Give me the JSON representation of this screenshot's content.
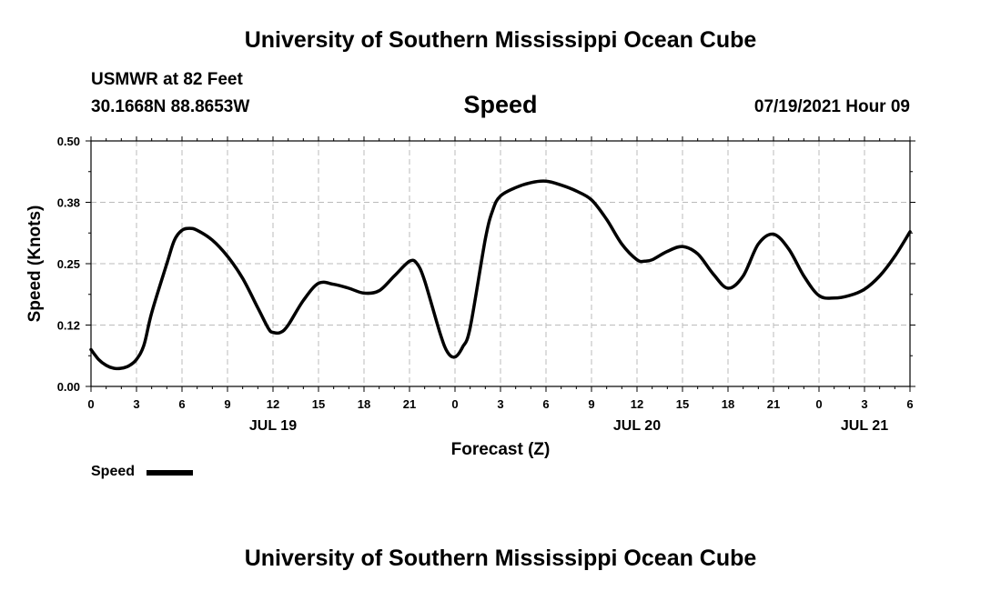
{
  "page": {
    "title_top": "University of Southern Mississippi Ocean Cube",
    "title_bottom": "University of Southern Mississippi Ocean Cube",
    "station": "USMWR at 82 Feet",
    "coords": "30.1668N  88.8653W",
    "date_hour": "07/19/2021 Hour 09"
  },
  "chart_data": {
    "type": "line",
    "title": "Speed",
    "xlabel": "Forecast (Z)",
    "ylabel": "Speed (Knots)",
    "ylim": [
      0,
      0.5
    ],
    "xlim": [
      0,
      54
    ],
    "x_unit": "hours since JUL 19 00Z",
    "grid": true,
    "legend": {
      "position": "bottom-left",
      "label": "Speed"
    },
    "y_ticks": [
      "0.00",
      "0.12",
      "0.25",
      "0.38",
      "0.50"
    ],
    "y_tick_values": [
      0,
      0.125,
      0.25,
      0.375,
      0.5
    ],
    "x_tick_hours": [
      0,
      3,
      6,
      9,
      12,
      15,
      18,
      21,
      24,
      27,
      30,
      33,
      36,
      39,
      42,
      45,
      48,
      51,
      54
    ],
    "x_tick_labels": [
      "0",
      "3",
      "6",
      "9",
      "12",
      "15",
      "18",
      "21",
      "0",
      "3",
      "6",
      "9",
      "12",
      "15",
      "18",
      "21",
      "0",
      "3",
      "6"
    ],
    "date_labels": [
      {
        "text": "JUL 19",
        "hour": 12
      },
      {
        "text": "JUL 20",
        "hour": 36
      },
      {
        "text": "JUL 21",
        "hour": 51
      }
    ],
    "series": [
      {
        "name": "Speed",
        "x": [
          0,
          0.5,
          1,
          1.5,
          2,
          2.5,
          3,
          3.5,
          4,
          5,
          5.5,
          6,
          6.5,
          7,
          8,
          9,
          10,
          11,
          11.7,
          12,
          12.5,
          13,
          14,
          15,
          16,
          17,
          18,
          19,
          20,
          21,
          21.5,
          22,
          23,
          23.5,
          24,
          24.5,
          25,
          26,
          26.5,
          27,
          28,
          29,
          30,
          31,
          32,
          33,
          34,
          35,
          36,
          36.5,
          37,
          38,
          39,
          40,
          41,
          42,
          43,
          44,
          45,
          46,
          47,
          48,
          49,
          50,
          51,
          52,
          53,
          54
        ],
        "values": [
          0.075,
          0.055,
          0.043,
          0.037,
          0.037,
          0.042,
          0.055,
          0.085,
          0.15,
          0.25,
          0.298,
          0.318,
          0.322,
          0.318,
          0.298,
          0.265,
          0.22,
          0.16,
          0.118,
          0.11,
          0.11,
          0.125,
          0.175,
          0.21,
          0.208,
          0.2,
          0.19,
          0.195,
          0.225,
          0.255,
          0.25,
          0.215,
          0.11,
          0.07,
          0.06,
          0.08,
          0.12,
          0.3,
          0.36,
          0.388,
          0.405,
          0.415,
          0.418,
          0.41,
          0.398,
          0.38,
          0.34,
          0.29,
          0.258,
          0.255,
          0.258,
          0.275,
          0.285,
          0.27,
          0.23,
          0.2,
          0.225,
          0.29,
          0.31,
          0.28,
          0.225,
          0.185,
          0.18,
          0.185,
          0.198,
          0.225,
          0.265,
          0.315
        ]
      }
    ]
  }
}
